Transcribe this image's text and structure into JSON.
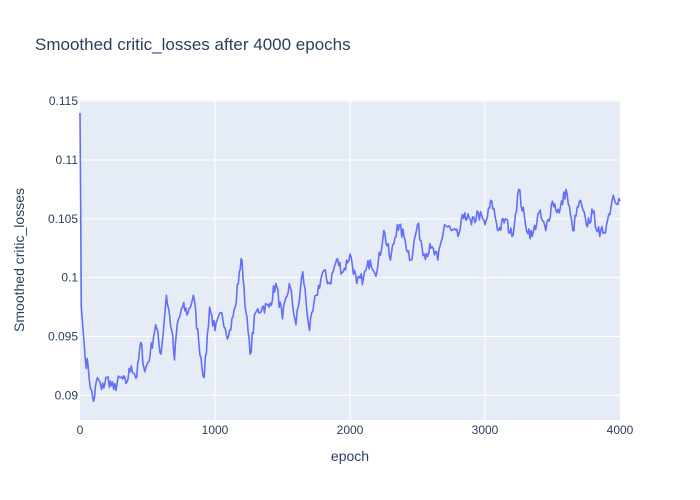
{
  "chart_data": {
    "type": "line",
    "title": "Smoothed critic_losses after 4000 epochs",
    "xlabel": "epoch",
    "ylabel": "Smoothed critic_losses",
    "xlim": [
      0,
      4000
    ],
    "ylim": [
      0.0879,
      0.1151
    ],
    "x_ticks": [
      0,
      1000,
      2000,
      3000,
      4000
    ],
    "x_tick_labels": [
      "0",
      "1000",
      "2000",
      "3000",
      "4000"
    ],
    "y_ticks": [
      0.09,
      0.095,
      0.1,
      0.105,
      0.11,
      0.115
    ],
    "y_tick_labels": [
      "0.09",
      "0.095",
      "0.1",
      "0.105",
      "0.11",
      "0.115"
    ],
    "grid": true,
    "legend": "none",
    "colors": {
      "plot_bg": "#e5ecf6",
      "grid": "#ffffff",
      "line": "#636efa",
      "text": "#2a3f5f"
    },
    "series": [
      {
        "x": [
          0,
          10,
          20,
          40,
          60,
          80,
          100,
          130,
          160,
          200,
          250,
          300,
          340,
          380,
          420,
          450,
          480,
          520,
          560,
          600,
          640,
          680,
          700,
          720,
          760,
          800,
          840,
          880,
          920,
          960,
          1000,
          1050,
          1100,
          1150,
          1180,
          1200,
          1230,
          1260,
          1300,
          1350,
          1400,
          1450,
          1500,
          1550,
          1600,
          1650,
          1700,
          1750,
          1800,
          1850,
          1900,
          1950,
          2000,
          2050,
          2100,
          2150,
          2200,
          2250,
          2300,
          2350,
          2400,
          2450,
          2500,
          2550,
          2600,
          2650,
          2700,
          2750,
          2800,
          2850,
          2900,
          2950,
          3000,
          3050,
          3100,
          3150,
          3200,
          3250,
          3300,
          3350,
          3400,
          3450,
          3500,
          3550,
          3600,
          3650,
          3700,
          3750,
          3800,
          3850,
          3900,
          3950,
          4000
        ],
        "y": [
          0.114,
          0.0975,
          0.096,
          0.093,
          0.0925,
          0.0905,
          0.0895,
          0.0915,
          0.0905,
          0.0915,
          0.0905,
          0.0915,
          0.091,
          0.0925,
          0.0915,
          0.0945,
          0.092,
          0.0935,
          0.096,
          0.0935,
          0.0985,
          0.0955,
          0.093,
          0.096,
          0.0975,
          0.097,
          0.0985,
          0.0945,
          0.0915,
          0.0975,
          0.0955,
          0.097,
          0.095,
          0.0975,
          0.1005,
          0.1015,
          0.097,
          0.0935,
          0.097,
          0.0975,
          0.0975,
          0.0995,
          0.0965,
          0.0995,
          0.096,
          0.1005,
          0.0955,
          0.0985,
          0.1005,
          0.0995,
          0.1015,
          0.1005,
          0.102,
          0.0995,
          0.1,
          0.1015,
          0.1005,
          0.104,
          0.1015,
          0.1045,
          0.1035,
          0.1015,
          0.1045,
          0.102,
          0.1025,
          0.1015,
          0.1045,
          0.104,
          0.1035,
          0.1055,
          0.1045,
          0.1055,
          0.1045,
          0.1065,
          0.104,
          0.105,
          0.1035,
          0.1075,
          0.1045,
          0.1035,
          0.1055,
          0.104,
          0.1065,
          0.1055,
          0.1075,
          0.104,
          0.1065,
          0.1045,
          0.1055,
          0.1035,
          0.1045,
          0.107,
          0.1065
        ]
      }
    ]
  }
}
